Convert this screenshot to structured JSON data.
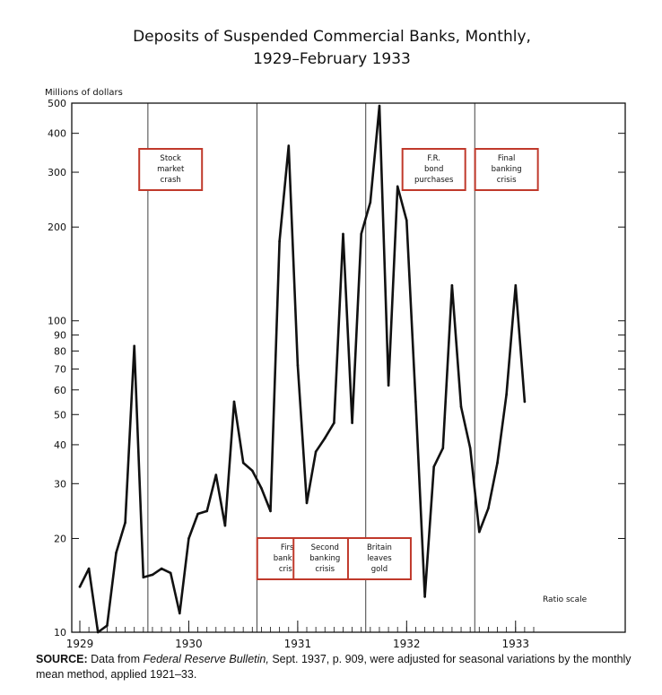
{
  "chart_data": {
    "type": "line",
    "title": "Deposits of Suspended Commercial Banks, Monthly,",
    "subtitle": "1929–February 1933",
    "ylabel": "Millions of dollars",
    "yscale": "log",
    "scale_note": "Ratio scale",
    "ylim": [
      10,
      500
    ],
    "yticks": [
      10,
      20,
      30,
      40,
      50,
      60,
      70,
      80,
      90,
      100,
      200,
      300,
      400,
      500
    ],
    "ytick_labels": [
      "10",
      "20",
      "30",
      "40",
      "50",
      "60",
      "70",
      "80",
      "90",
      "100",
      "200",
      "300",
      "400",
      "500"
    ],
    "xticks": [
      "1929",
      "1930",
      "1931",
      "1932",
      "1933"
    ],
    "xlim_months": [
      0,
      50
    ],
    "series": [
      {
        "name": "Deposits of suspended commercial banks",
        "months": [
          0,
          1,
          2,
          3,
          4,
          5,
          6,
          7,
          8,
          9,
          10,
          11,
          12,
          13,
          14,
          15,
          16,
          17,
          18,
          19,
          20,
          21,
          22,
          23,
          24,
          25,
          26,
          27,
          28,
          29,
          30,
          31,
          32,
          33,
          34,
          35,
          36,
          37,
          38,
          39,
          40,
          41,
          42,
          43,
          44,
          45,
          46,
          47,
          48,
          49
        ],
        "values": [
          14,
          16,
          10,
          10.5,
          18,
          22.5,
          83,
          15,
          15.3,
          16,
          15.5,
          11.5,
          20,
          24,
          24.5,
          32,
          22,
          55,
          35,
          33,
          29,
          24.5,
          180,
          365,
          72,
          26,
          38,
          42,
          47,
          190,
          47,
          190,
          240,
          490,
          62,
          270,
          210,
          55,
          13,
          34,
          39,
          130,
          53,
          39,
          21,
          25,
          35,
          58,
          130,
          55
        ]
      }
    ],
    "annotations": [
      {
        "month": 10,
        "lines": [
          "Stock",
          "market",
          "crash"
        ],
        "position": "top"
      },
      {
        "month": 23,
        "lines": [
          "First",
          "banking",
          "crisis"
        ],
        "position": "bottom"
      },
      {
        "month": 27,
        "lines": [
          "Second",
          "banking",
          "crisis"
        ],
        "position": "bottom"
      },
      {
        "month": 33,
        "lines": [
          "Britain",
          "leaves",
          "gold"
        ],
        "position": "bottom"
      },
      {
        "month": 39,
        "lines": [
          "F.R.",
          "bond",
          "purchases"
        ],
        "position": "top"
      },
      {
        "month": 47,
        "lines": [
          "Final",
          "banking",
          "crisis"
        ],
        "position": "top"
      }
    ],
    "annotation_box_color": "#c0392b"
  },
  "source": {
    "label": "SOURCE:",
    "text_before": " Data from ",
    "publication": "Federal Reserve Bulletin,",
    "text_after": " Sept. 1937, p. 909, were adjusted for seasonal variations by the monthly mean method, applied 1921–33."
  }
}
